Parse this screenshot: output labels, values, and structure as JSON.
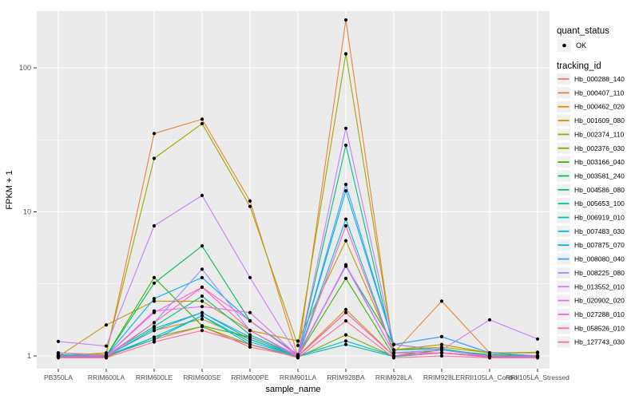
{
  "chart_data": {
    "type": "line",
    "xlabel": "sample_name",
    "ylabel": "FPKM + 1",
    "y_scale": "log10",
    "y_ticks": [
      1,
      10,
      100
    ],
    "y_minor_ticks": [
      3.162,
      31.62
    ],
    "ylim": [
      0.82,
      250
    ],
    "grid": true,
    "legend_position": "right",
    "panel_background": "#EBEBEB",
    "grid_color": "#FFFFFF",
    "point_color": "#000000",
    "tick_label_color": "#4D4D4D",
    "categories": [
      "PB350LA",
      "RRIM600LA",
      "RRIM600LE",
      "RRIM600SE",
      "RRIM600PE",
      "RRIM901LA",
      "RRIM928BA",
      "RRIM928LA",
      "RRIM928LE",
      "RRII105LA_Control",
      "RRII105LA_Stressed"
    ],
    "legend": {
      "quant_status": {
        "title": "quant_status",
        "entries": [
          {
            "label": "OK",
            "marker": "point"
          }
        ]
      },
      "tracking_id_title": "tracking_id"
    },
    "series": [
      {
        "name": "Hb_000288_140",
        "color": "#F8766D",
        "values": [
          1.0,
          0.99,
          1.3,
          1.6,
          1.15,
          0.99,
          2.0,
          1.0,
          1.05,
          1.0,
          0.99
        ]
      },
      {
        "name": "Hb_000407_110",
        "color": "#EA8331",
        "values": [
          1.05,
          1.02,
          35.0,
          44.0,
          11.9,
          1.0,
          215.0,
          1.05,
          2.4,
          1.05,
          1.0
        ]
      },
      {
        "name": "Hb_000462_020",
        "color": "#D89000",
        "values": [
          1.0,
          1.0,
          1.5,
          1.8,
          1.3,
          1.0,
          2.1,
          1.0,
          1.1,
          1.0,
          1.0
        ]
      },
      {
        "name": "Hb_001609_080",
        "color": "#C09B00",
        "values": [
          0.99,
          1.64,
          2.4,
          2.4,
          1.5,
          1.27,
          6.3,
          1.1,
          1.15,
          1.05,
          1.05
        ]
      },
      {
        "name": "Hb_002374_110",
        "color": "#A3A500",
        "values": [
          1.0,
          1.05,
          23.5,
          41.0,
          10.9,
          1.18,
          125.0,
          1.1,
          1.2,
          1.05,
          1.06
        ]
      },
      {
        "name": "Hb_002376_030",
        "color": "#7CAE00",
        "values": [
          0.98,
          0.98,
          1.35,
          1.6,
          1.2,
          0.98,
          1.4,
          0.99,
          1.05,
          0.98,
          0.98
        ]
      },
      {
        "name": "Hb_003166_040",
        "color": "#39B600",
        "values": [
          1.0,
          1.0,
          3.5,
          1.62,
          1.35,
          1.0,
          3.45,
          1.0,
          1.1,
          1.0,
          1.0
        ]
      },
      {
        "name": "Hb_003581_240",
        "color": "#00BB4E",
        "values": [
          1.02,
          1.0,
          3.2,
          5.8,
          1.75,
          1.02,
          4.2,
          1.2,
          1.1,
          1.02,
          1.0
        ]
      },
      {
        "name": "Hb_004586_080",
        "color": "#00BF7D",
        "values": [
          1.0,
          1.01,
          1.6,
          2.6,
          1.4,
          1.0,
          29.0,
          1.1,
          1.12,
          1.0,
          1.0
        ]
      },
      {
        "name": "Hb_005653_100",
        "color": "#00C1A3",
        "values": [
          0.99,
          0.99,
          1.55,
          2.0,
          1.3,
          0.99,
          1.2,
          0.99,
          1.05,
          0.99,
          0.99
        ]
      },
      {
        "name": "Hb_006919_010",
        "color": "#00BFC4",
        "values": [
          1.0,
          1.0,
          1.3,
          1.9,
          1.2,
          1.0,
          1.27,
          1.0,
          1.05,
          1.0,
          1.0
        ]
      },
      {
        "name": "Hb_007483_030",
        "color": "#00BAE0",
        "values": [
          1.01,
          1.0,
          1.35,
          1.9,
          1.25,
          1.0,
          8.9,
          1.05,
          1.1,
          1.0,
          1.0
        ]
      },
      {
        "name": "Hb_007875_070",
        "color": "#00B0F6",
        "values": [
          1.0,
          1.0,
          2.5,
          3.5,
          1.75,
          1.01,
          14.0,
          1.2,
          1.36,
          1.05,
          1.0
        ]
      },
      {
        "name": "Hb_008080_040",
        "color": "#35A2FF",
        "values": [
          1.0,
          1.0,
          1.5,
          2.0,
          1.35,
          1.0,
          15.5,
          1.2,
          1.36,
          1.05,
          1.0
        ]
      },
      {
        "name": "Hb_008225_080",
        "color": "#9590FF",
        "values": [
          1.05,
          1.0,
          1.7,
          4.0,
          1.5,
          1.0,
          4.2,
          1.05,
          1.1,
          1.0,
          1.0
        ]
      },
      {
        "name": "Hb_013552_010",
        "color": "#C77CFF",
        "values": [
          1.26,
          1.17,
          8.0,
          13.0,
          3.5,
          1.0,
          38.0,
          1.2,
          1.1,
          1.78,
          1.31
        ]
      },
      {
        "name": "Hb_020902_020",
        "color": "#E76BF3",
        "values": [
          1.0,
          1.0,
          2.05,
          2.2,
          2.0,
          1.0,
          4.3,
          1.05,
          1.05,
          1.0,
          1.0
        ]
      },
      {
        "name": "Hb_027288_010",
        "color": "#FA62DB",
        "values": [
          1.0,
          1.0,
          2.0,
          3.0,
          1.75,
          1.0,
          2.0,
          1.0,
          1.05,
          1.0,
          1.0
        ]
      },
      {
        "name": "Hb_058526_010",
        "color": "#FF62BC",
        "values": [
          0.98,
          0.98,
          1.7,
          3.0,
          1.5,
          0.98,
          8.0,
          1.05,
          1.05,
          0.98,
          0.98
        ]
      },
      {
        "name": "Hb_127743_030",
        "color": "#FF6A98",
        "values": [
          0.97,
          0.97,
          1.25,
          1.5,
          1.2,
          0.97,
          1.75,
          0.97,
          1.0,
          0.97,
          0.97
        ]
      }
    ]
  }
}
